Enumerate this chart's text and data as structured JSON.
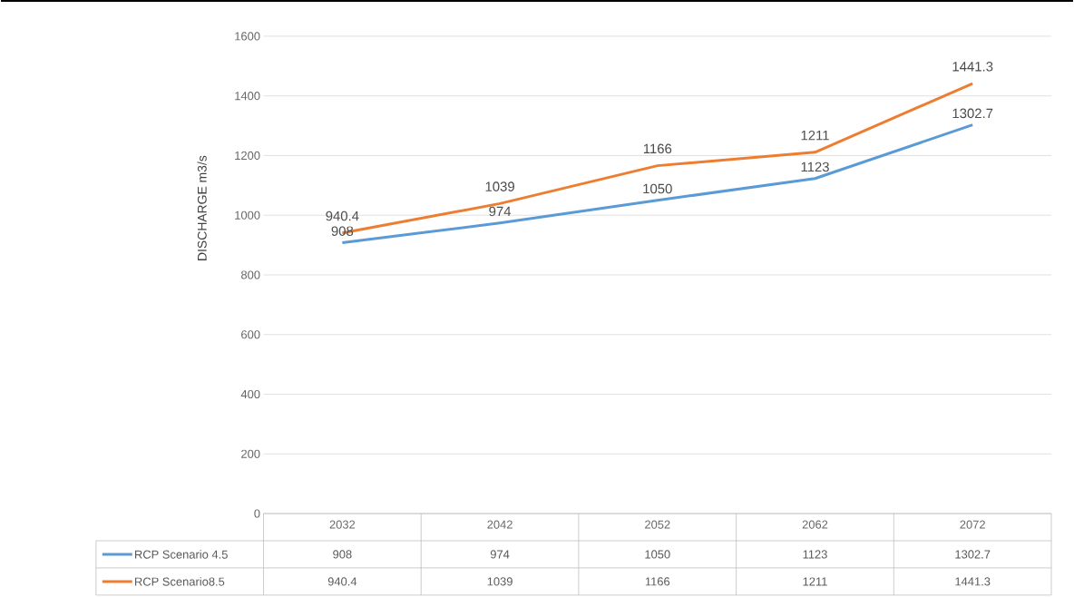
{
  "chart_data": {
    "type": "line",
    "ylabel": "DISCHARGE m3/s",
    "categories": [
      "2032",
      "2042",
      "2052",
      "2062",
      "2072"
    ],
    "series": [
      {
        "name": "RCP Scenario 4.5",
        "color": "#5b9bd5",
        "values": [
          908,
          974,
          1050,
          1123,
          1302.7
        ],
        "value_labels": [
          "908",
          "974",
          "1050",
          "1123",
          "1302.7"
        ]
      },
      {
        "name": "RCP Scenario8.5",
        "color": "#ed7d31",
        "values": [
          940.4,
          1039,
          1166,
          1211,
          1441.3
        ],
        "value_labels": [
          "940.4",
          "1039",
          "1166",
          "1211",
          "1441.3"
        ]
      }
    ],
    "ylim": [
      0,
      1600
    ],
    "yticks": [
      0,
      200,
      400,
      600,
      800,
      1000,
      1200,
      1400,
      1600
    ],
    "grid": "y",
    "legend": "bottom",
    "data_labels": true
  }
}
